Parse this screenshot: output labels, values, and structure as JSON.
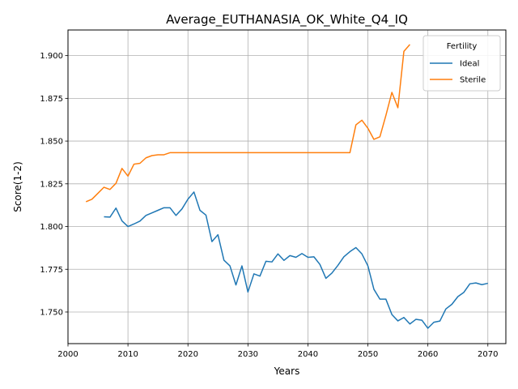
{
  "chart_data": {
    "type": "line",
    "title": "Average_EUTHANASIA_OK_White_Q4_IQ",
    "xlabel": "Years",
    "ylabel": "Score(1-2)",
    "xlim": [
      2000,
      2073
    ],
    "ylim": [
      1.7315,
      1.915
    ],
    "xticks": [
      2000,
      2010,
      2020,
      2030,
      2040,
      2050,
      2060,
      2070
    ],
    "xtick_labels": [
      "2000",
      "2010",
      "2020",
      "2030",
      "2040",
      "2050",
      "2060",
      "2070"
    ],
    "yticks": [
      1.75,
      1.775,
      1.8,
      1.825,
      1.85,
      1.875,
      1.9
    ],
    "ytick_labels": [
      "1.750",
      "1.775",
      "1.800",
      "1.825",
      "1.850",
      "1.875",
      "1.900"
    ],
    "grid": true,
    "legend": {
      "title": "Fertility",
      "placement": "top-right"
    },
    "series": [
      {
        "name": "Ideal",
        "color": "#1f77b4",
        "x": [
          2006,
          2007,
          2008,
          2009,
          2010,
          2011,
          2012,
          2013,
          2014,
          2015,
          2016,
          2017,
          2018,
          2019,
          2020,
          2021,
          2022,
          2023,
          2024,
          2025,
          2026,
          2027,
          2028,
          2029,
          2030,
          2031,
          2032,
          2033,
          2034,
          2035,
          2036,
          2037,
          2038,
          2039,
          2040,
          2041,
          2042,
          2043,
          2044,
          2045,
          2046,
          2047,
          2048,
          2049,
          2050,
          2051,
          2052,
          2053,
          2054,
          2055,
          2056,
          2057,
          2058,
          2059,
          2060,
          2061,
          2062,
          2063,
          2064,
          2065,
          2066,
          2067,
          2068,
          2069,
          2070
        ],
        "y": [
          1.8057,
          1.8055,
          1.8108,
          1.8033,
          1.8,
          1.8015,
          1.8032,
          1.8065,
          1.808,
          1.8095,
          1.811,
          1.811,
          1.8065,
          1.8103,
          1.816,
          1.8202,
          1.8095,
          1.8067,
          1.7912,
          1.7952,
          1.7803,
          1.777,
          1.7658,
          1.777,
          1.7617,
          1.7723,
          1.771,
          1.7797,
          1.7793,
          1.784,
          1.7802,
          1.783,
          1.782,
          1.7842,
          1.782,
          1.7823,
          1.7778,
          1.7697,
          1.7728,
          1.7773,
          1.7823,
          1.7853,
          1.7877,
          1.784,
          1.777,
          1.7633,
          1.7575,
          1.7575,
          1.7485,
          1.7448,
          1.7468,
          1.743,
          1.7457,
          1.7452,
          1.7405,
          1.744,
          1.7447,
          1.7518,
          1.7545,
          1.759,
          1.7615,
          1.7665,
          1.767,
          1.766,
          1.7668
        ]
      },
      {
        "name": "Sterile",
        "color": "#ff7f0e",
        "x": [
          2003,
          2004,
          2005,
          2006,
          2007,
          2008,
          2009,
          2010,
          2011,
          2012,
          2013,
          2014,
          2015,
          2016,
          2017,
          2018,
          2019,
          2020,
          2021,
          2022,
          2023,
          2024,
          2025,
          2026,
          2027,
          2028,
          2029,
          2030,
          2031,
          2032,
          2033,
          2034,
          2035,
          2036,
          2037,
          2038,
          2039,
          2040,
          2041,
          2042,
          2043,
          2044,
          2045,
          2046,
          2047,
          2048,
          2049,
          2050,
          2051,
          2052,
          2053,
          2054,
          2055,
          2056,
          2057
        ],
        "y": [
          1.8145,
          1.816,
          1.8195,
          1.823,
          1.8217,
          1.8253,
          1.834,
          1.8295,
          1.8365,
          1.837,
          1.8402,
          1.8415,
          1.842,
          1.842,
          1.8432,
          1.8432,
          1.8432,
          1.8432,
          1.8432,
          1.8432,
          1.8432,
          1.8432,
          1.8432,
          1.8432,
          1.8432,
          1.8432,
          1.8432,
          1.8432,
          1.8432,
          1.8432,
          1.8432,
          1.8432,
          1.8432,
          1.8432,
          1.8432,
          1.8432,
          1.8432,
          1.8432,
          1.8432,
          1.8432,
          1.8432,
          1.8432,
          1.8432,
          1.8432,
          1.8432,
          1.8595,
          1.8622,
          1.8575,
          1.851,
          1.8525,
          1.865,
          1.8785,
          1.8695,
          1.9025,
          1.9065
        ]
      }
    ]
  }
}
